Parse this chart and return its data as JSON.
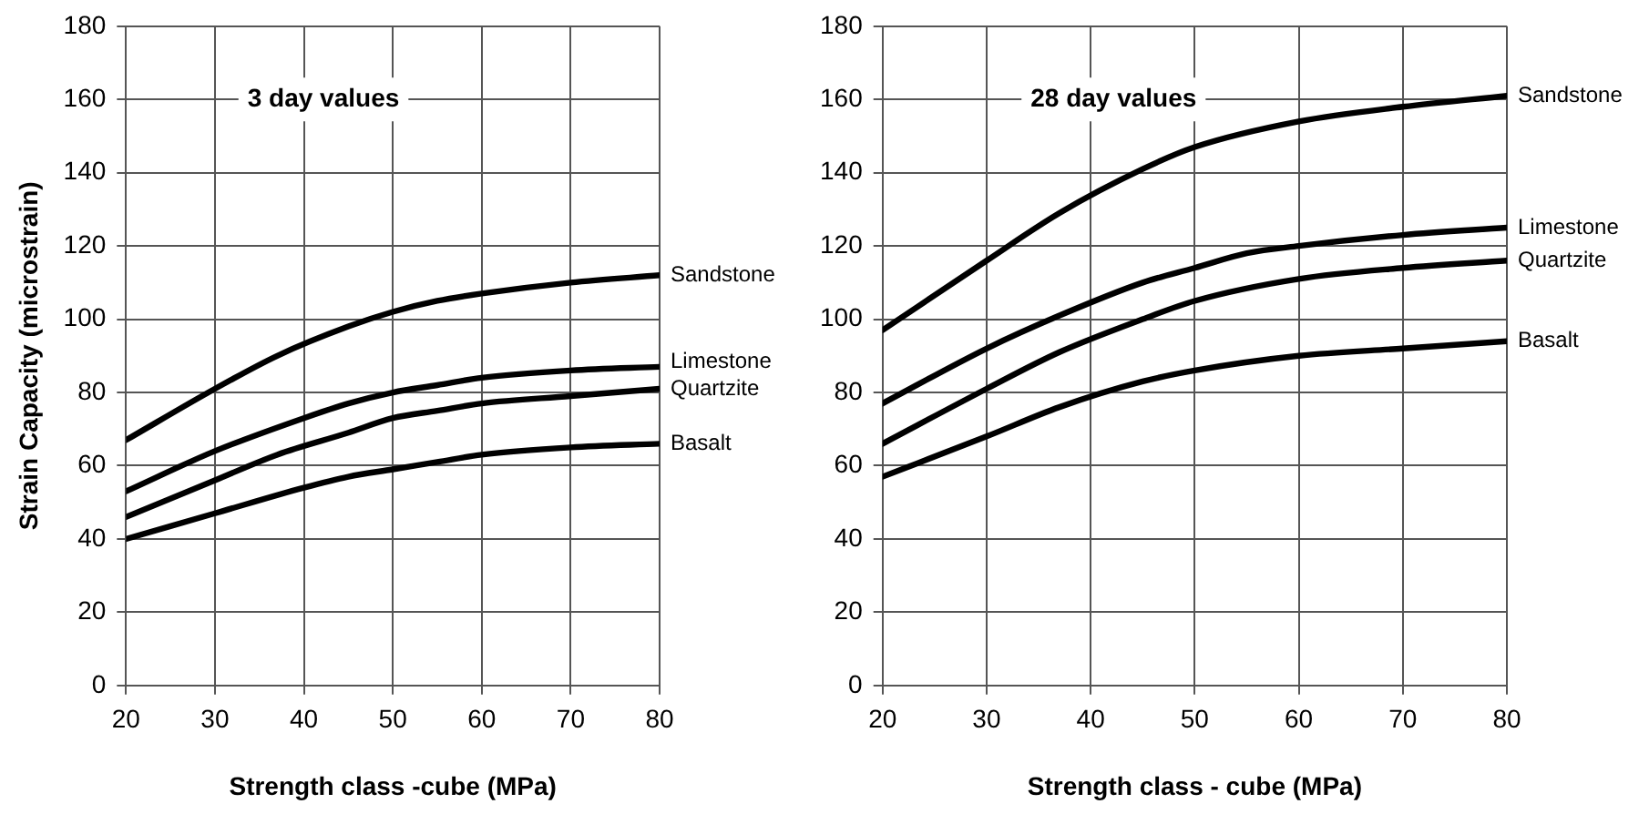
{
  "chart_data": [
    {
      "type": "line",
      "title": "3 day values",
      "xlabel": "Strength class -cube (MPa)",
      "ylabel": "Strain Capacity (microstrain)",
      "xlim": [
        20,
        80
      ],
      "xticks": [
        20,
        30,
        40,
        50,
        60,
        70,
        80
      ],
      "ylim": [
        0,
        180
      ],
      "yticks": [
        0,
        20,
        40,
        60,
        80,
        100,
        120,
        140,
        160,
        180
      ],
      "grid": true,
      "legend": false,
      "marker": "none",
      "line_style": "solid",
      "series": [
        {
          "name": "Sandstone",
          "color": "#000000",
          "x": [
            20,
            30,
            37,
            45,
            50,
            55,
            60,
            70,
            80
          ],
          "values": [
            67,
            81,
            90,
            98,
            102,
            105,
            107,
            110,
            112
          ]
        },
        {
          "name": "Limestone",
          "color": "#000000",
          "x": [
            20,
            30,
            40,
            45,
            50,
            55,
            60,
            70,
            80
          ],
          "values": [
            53,
            64,
            73,
            77,
            80,
            82,
            84,
            86,
            87
          ]
        },
        {
          "name": "Quartzite",
          "color": "#000000",
          "x": [
            20,
            30,
            37,
            45,
            50,
            55,
            60,
            70,
            80
          ],
          "values": [
            46,
            56,
            63,
            69,
            73,
            75,
            77,
            79,
            81
          ]
        },
        {
          "name": "Basalt",
          "color": "#000000",
          "x": [
            20,
            30,
            40,
            45,
            50,
            55,
            60,
            70,
            80
          ],
          "values": [
            40,
            47,
            54,
            57,
            59,
            61,
            63,
            65,
            66
          ]
        }
      ]
    },
    {
      "type": "line",
      "title": "28 day values",
      "xlabel": "Strength class - cube (MPa)",
      "xlim": [
        20,
        80
      ],
      "xticks": [
        20,
        30,
        40,
        50,
        60,
        70,
        80
      ],
      "ylim": [
        0,
        180
      ],
      "yticks": [
        0,
        20,
        40,
        60,
        80,
        100,
        120,
        140,
        160,
        180
      ],
      "grid": true,
      "legend": false,
      "marker": "none",
      "line_style": "solid",
      "series": [
        {
          "name": "Sandstone",
          "color": "#000000",
          "x": [
            20,
            30,
            37,
            45,
            50,
            60,
            70,
            80
          ],
          "values": [
            97,
            116,
            129,
            141,
            147,
            154,
            158,
            161
          ]
        },
        {
          "name": "Limestone",
          "color": "#000000",
          "x": [
            20,
            30,
            37,
            45,
            50,
            55,
            60,
            70,
            80
          ],
          "values": [
            77,
            92,
            101,
            110,
            114,
            118,
            120,
            123,
            125
          ]
        },
        {
          "name": "Quartzite",
          "color": "#000000",
          "x": [
            20,
            30,
            37,
            45,
            50,
            60,
            70,
            80
          ],
          "values": [
            66,
            81,
            91,
            100,
            105,
            111,
            114,
            116
          ]
        },
        {
          "name": "Basalt",
          "color": "#000000",
          "x": [
            20,
            30,
            37,
            45,
            50,
            60,
            70,
            80
          ],
          "values": [
            57,
            68,
            76,
            83,
            86,
            90,
            92,
            94
          ]
        }
      ]
    }
  ]
}
